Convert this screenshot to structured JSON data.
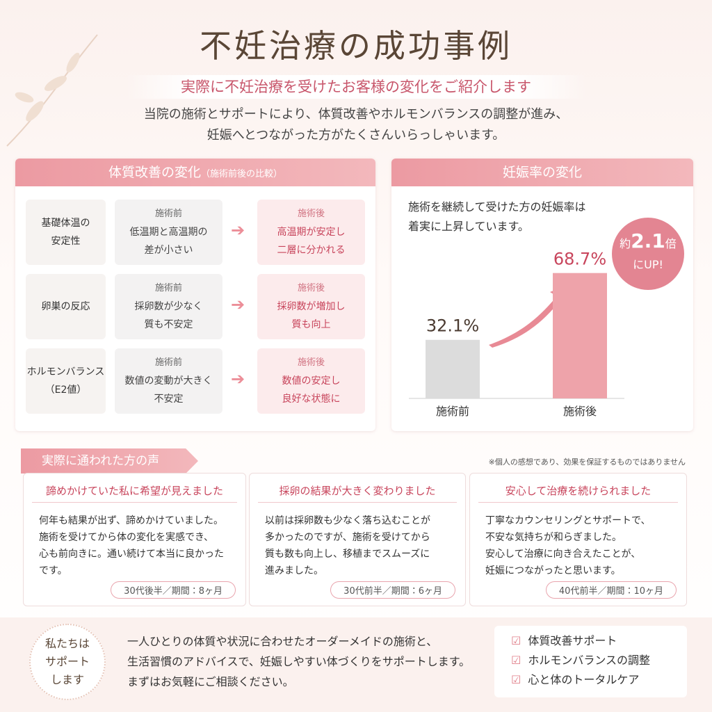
{
  "header": {
    "title": "不妊治療の成功事例",
    "subtitle": "実際に不妊治療を受けたお客様の変化をご紹介します",
    "description": [
      "当院の施術とサポートにより、体質改善やホルモンバランスの調整が進み、",
      "妊娠へとつながった方がたくさんいらっしゃいます。"
    ]
  },
  "comparison": {
    "title": "体質改善の変化",
    "title_note": "（施術前後の比較）",
    "rows": [
      {
        "label": [
          "基礎体温の",
          "安定性"
        ],
        "before_label": "施術前",
        "before": [
          "低温期と高温期の",
          "差が小さい"
        ],
        "after_label": "施術後",
        "after": [
          "高温期が安定し",
          "二層に分かれる"
        ]
      },
      {
        "label": [
          "卵巣の反応"
        ],
        "before_label": "施術前",
        "before": [
          "採卵数が少なく",
          "質も不安定"
        ],
        "after_label": "施術後",
        "after": [
          "採卵数が増加し",
          "質も向上"
        ]
      },
      {
        "label": [
          "ホルモンバランス",
          "（E2値）"
        ],
        "before_label": "施術前",
        "before": [
          "数値の変動が大きく",
          "不安定"
        ],
        "after_label": "施術後",
        "after": [
          "数値の安定し",
          "良好な状態に"
        ]
      }
    ]
  },
  "pregnancy": {
    "title": "妊娠率の変化",
    "description": [
      "施術を継続して受けた方の妊娠率は",
      "着実に上昇しています。"
    ],
    "badge": {
      "prefix": "約",
      "number": "2.1",
      "suffix": "倍",
      "tail": "にUP!"
    },
    "chart_data": {
      "type": "bar",
      "categories": [
        "施術前",
        "施術後"
      ],
      "values": [
        32.1,
        68.7
      ],
      "value_labels": [
        "32.1%",
        "68.7%"
      ],
      "colors": [
        "#dcdcdc",
        "#eea3aa"
      ],
      "label_colors": [
        "#4a3a30",
        "#c8455c"
      ],
      "ylim": [
        0,
        80
      ]
    }
  },
  "voices": {
    "title": "実際に通われた方の声",
    "disclaimer": "※個人の感想であり、効果を保証するものではありません",
    "items": [
      {
        "title": "諦めかけていた私に希望が見えました",
        "body": [
          "何年も結果が出ず、諦めかけていました。",
          "施術を受けてから体の変化を実感でき、",
          "心も前向きに。通い続けて本当に良かった",
          "です。"
        ],
        "meta": "30代後半／期間：8ヶ月"
      },
      {
        "title": "採卵の結果が大きく変わりました",
        "body": [
          "以前は採卵数も少なく落ち込むことが",
          "多かったのですが、施術を受けてから",
          "質も数も向上し、移植までスムーズに",
          "進みました。"
        ],
        "meta": "30代前半／期間：6ヶ月"
      },
      {
        "title": "安心して治療を続けられました",
        "body": [
          "丁寧なカウンセリングとサポートで、",
          "不安な気持ちが和らぎました。",
          "安心して治療に向き合えたことが、",
          "妊娠につながったと思います。"
        ],
        "meta": "40代前半／期間：10ヶ月"
      }
    ]
  },
  "support": {
    "badge": [
      "私たちは",
      "サポート",
      "します"
    ],
    "body": [
      "一人ひとりの体質や状況に合わせたオーダーメイドの施術と、",
      "生活習慣のアドバイスで、妊娠しやすい体づくりをサポートします。",
      "まずはお気軽にご相談ください。"
    ],
    "checklist": [
      "体質改善サポート",
      "ホルモンバランスの調整",
      "心と体のトータルケア"
    ]
  }
}
